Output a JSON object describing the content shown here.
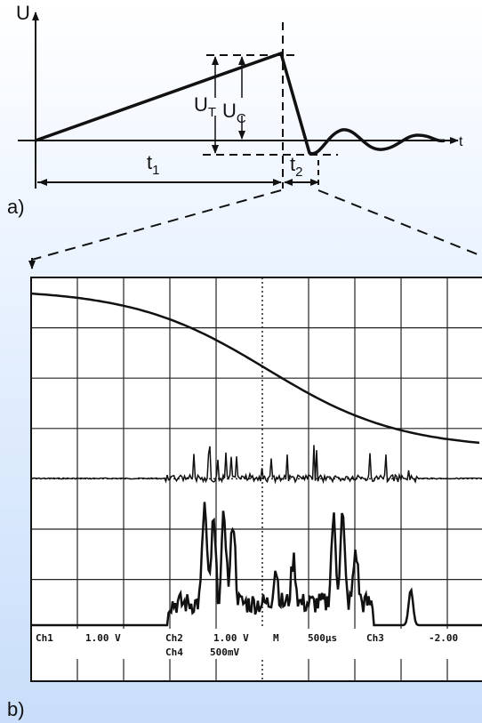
{
  "panel_a": {
    "label": "a)",
    "axis_y": "U",
    "axis_x": "t",
    "u_t": {
      "main": "U",
      "sub": "T"
    },
    "u_c": {
      "main": "U",
      "sub": "C"
    },
    "t1": {
      "main": "t",
      "sub": "1"
    },
    "t2": {
      "main": "t",
      "sub": "2"
    }
  },
  "panel_b": {
    "label": "b)",
    "scope": {
      "row1": [
        "Ch1",
        "1.00 V",
        "Ch2",
        "1.00 V",
        "M",
        "500µs",
        "Ch3",
        "-2.00"
      ],
      "row2": [
        "Ch4",
        "500mV"
      ]
    }
  }
}
